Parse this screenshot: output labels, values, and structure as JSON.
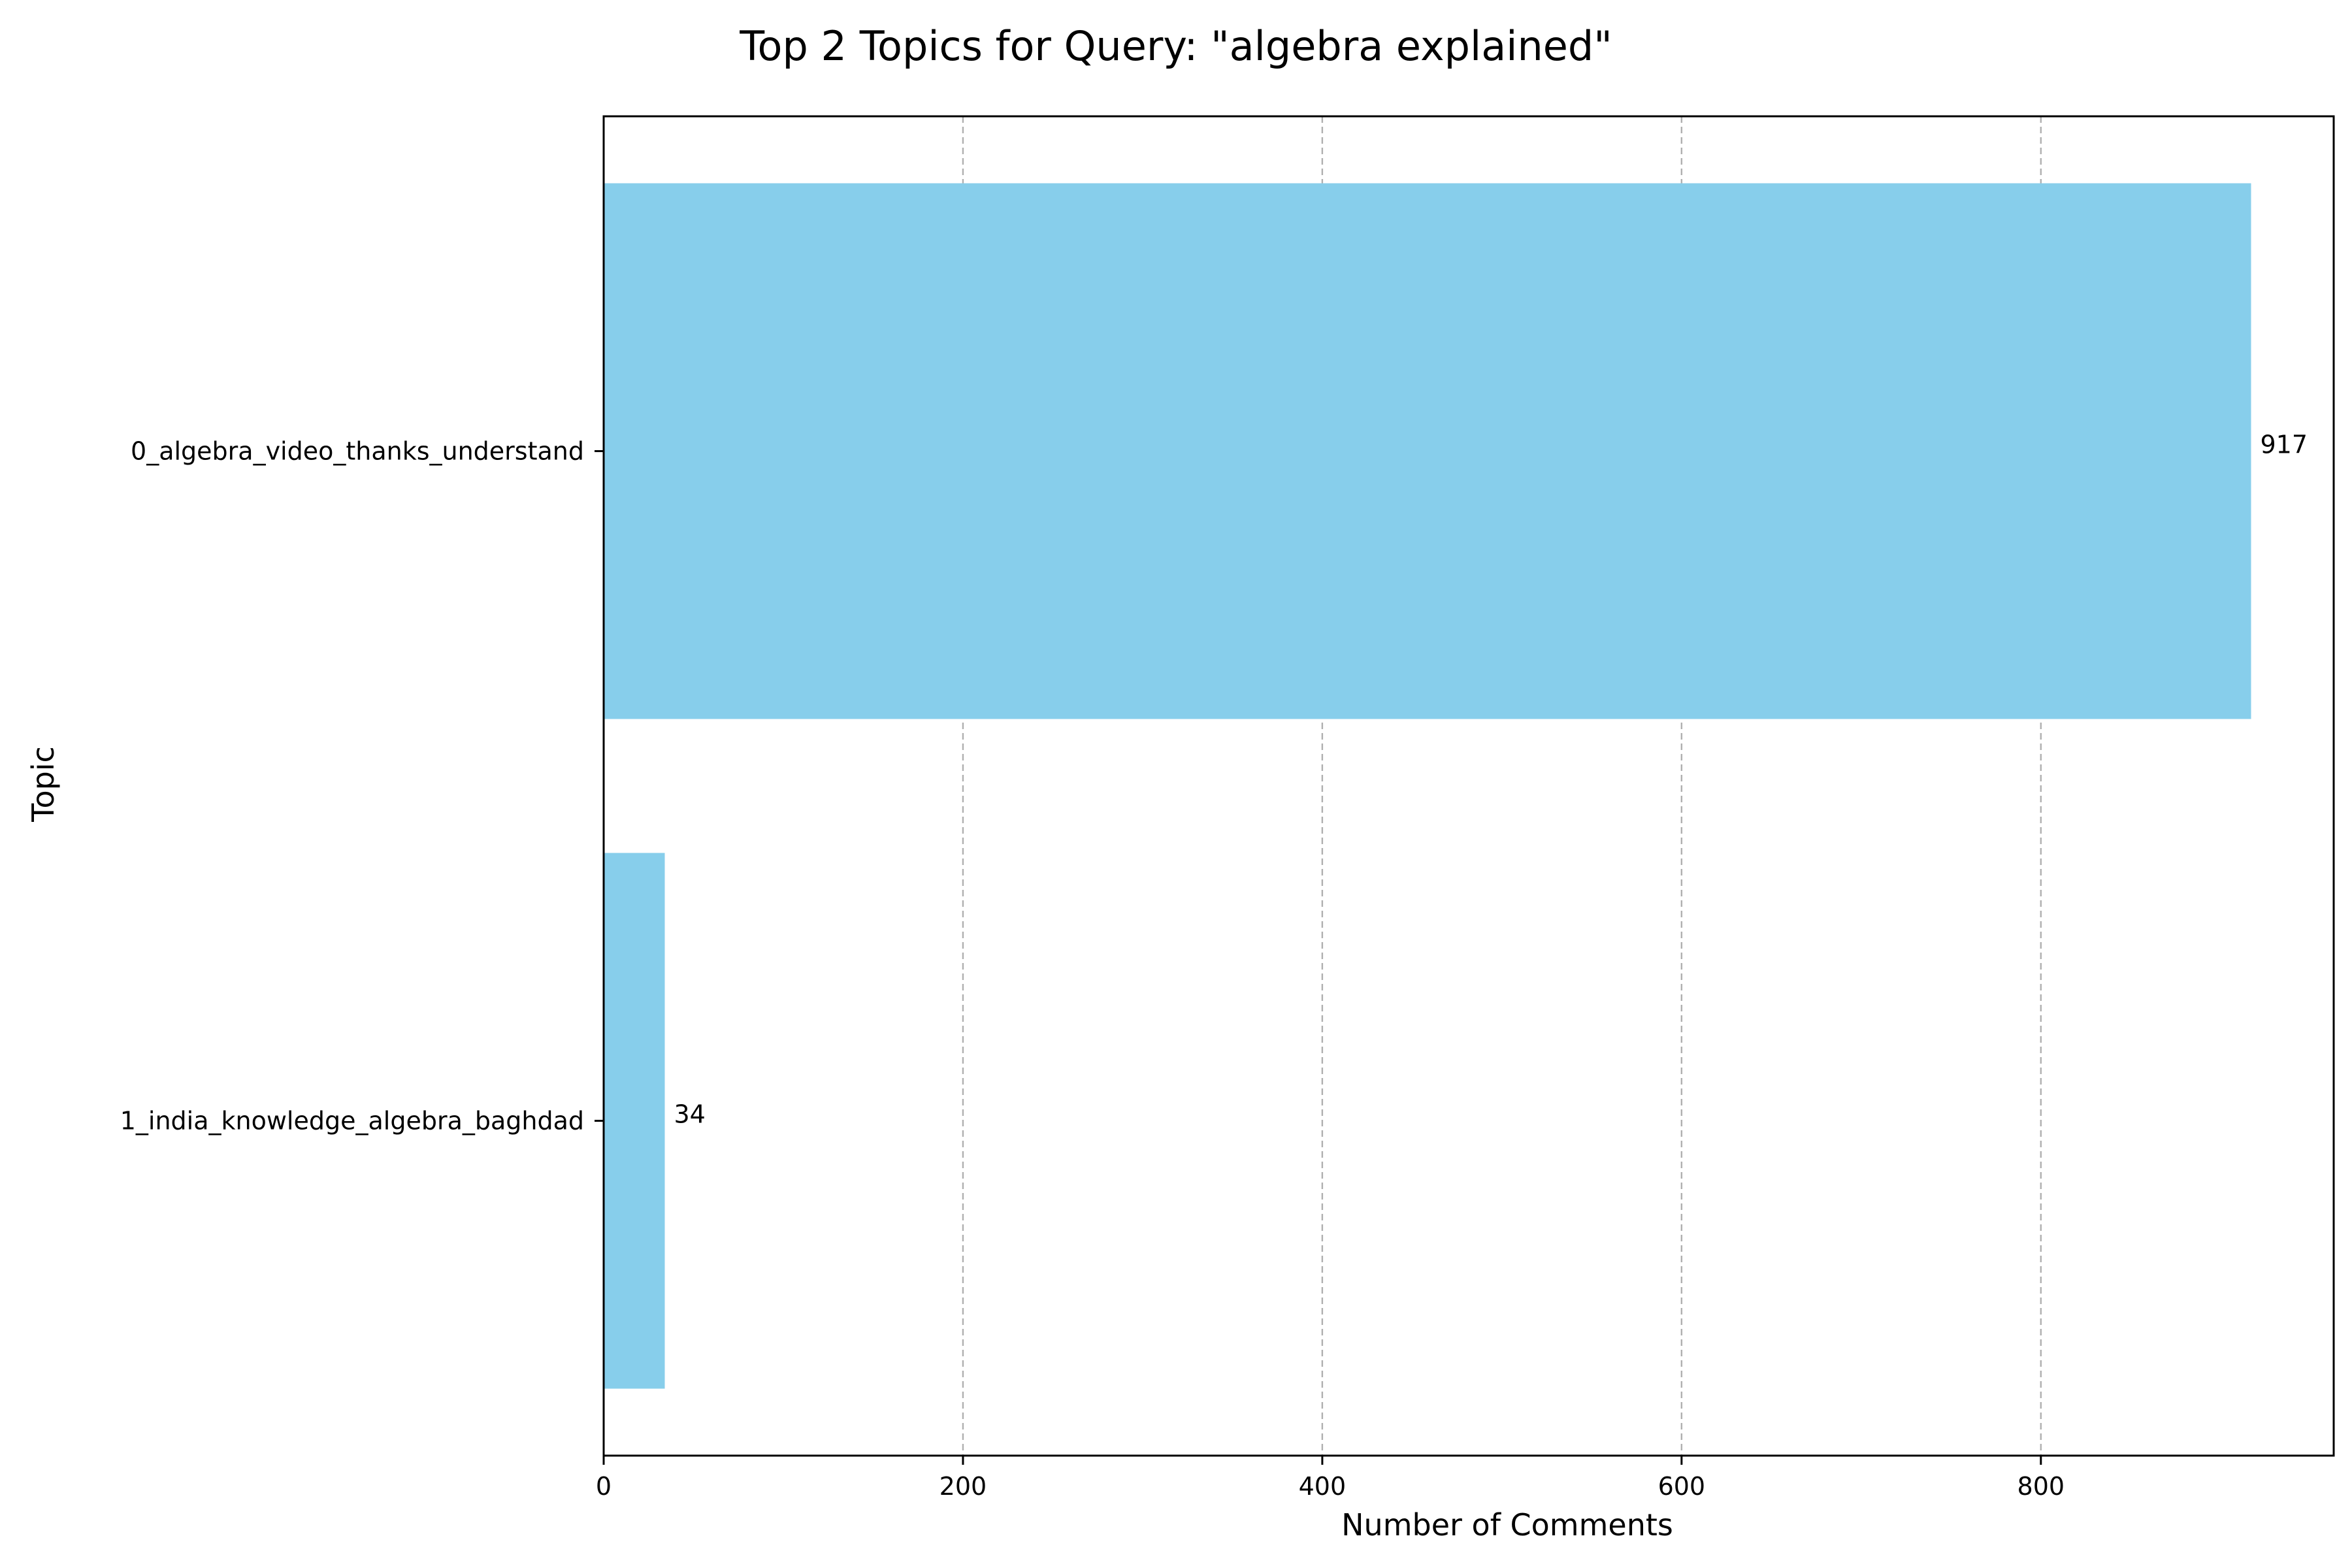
{
  "chart_data": {
    "type": "bar",
    "orientation": "horizontal",
    "title": "Top 2 Topics for Query: \"algebra explained\"",
    "xlabel": "Number of Comments",
    "ylabel": "Topic",
    "categories": [
      "0_algebra_video_thanks_understand",
      "1_india_knowledge_algebra_baghdad"
    ],
    "values": [
      917,
      34
    ],
    "data_labels": [
      "917",
      "34"
    ],
    "xlim": [
      0,
      963
    ],
    "xticks": [
      0,
      200,
      400,
      600,
      800
    ],
    "xtick_labels": [
      "0",
      "200",
      "400",
      "600",
      "800"
    ],
    "grid": "x-axis dashed",
    "bar_color": "#87CEEB",
    "grid_color": "#b0b0b0",
    "axis_color": "#000000"
  }
}
